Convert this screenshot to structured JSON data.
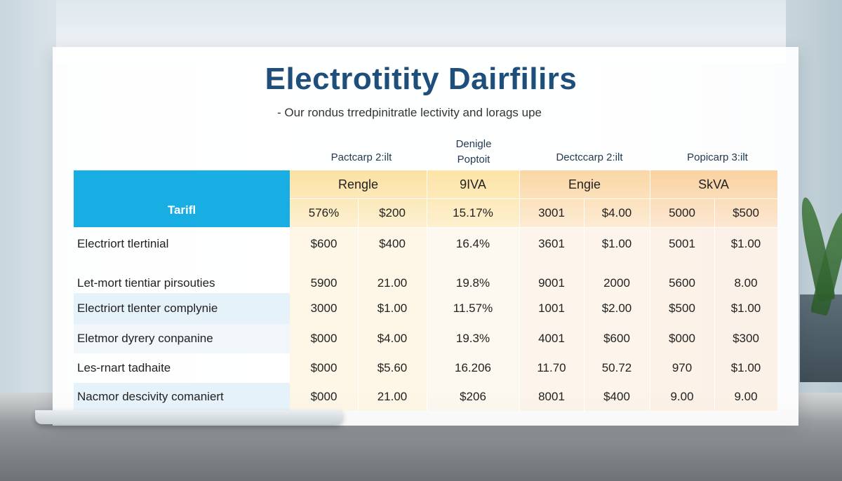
{
  "title": "Electrotitity Dairfilirs",
  "subtitle": "- Our rondus trredpinitratle lectivity and lorags upe",
  "column_headers": [
    {
      "text": "Pactcarp 2:ilt"
    },
    {
      "text": "Denigle\nPoptoit"
    },
    {
      "text": "Dectccarp 2:ilt"
    },
    {
      "text": "Popicarp 3:ilt"
    }
  ],
  "tarif_label": "Tarifl",
  "groups": [
    "Rengle",
    "9IVA",
    "Engie",
    "SkVA"
  ],
  "header_values": [
    "576%",
    "$200",
    "15.17%",
    "3001",
    "$4.00",
    "5000",
    "$500"
  ],
  "rows": [
    {
      "label": "Electriort tlertinial",
      "values": [
        "$600",
        "$400",
        "16.4%",
        "3601",
        "$1.00",
        "5001",
        "$1.00"
      ]
    },
    {
      "label": "Let-mort tientiar pirsouties",
      "values": [
        "5900",
        "21.00",
        "19.8%",
        "9001",
        "2000",
        "5600",
        "8.00"
      ]
    },
    {
      "label": "Electriort tlenter complynie",
      "values": [
        "3000",
        "$1.00",
        "11.57%",
        "1001",
        "$2.00",
        "$500",
        "$1.00"
      ]
    },
    {
      "label": "Eletmor dyrery conpanine",
      "values": [
        "$000",
        "$4.00",
        "19.3%",
        "4001",
        "$600",
        "$000",
        "$300"
      ]
    },
    {
      "label": "Les-rnart tadhaite",
      "values": [
        "$000",
        "$5.60",
        "16.206",
        "11.70",
        "50.72",
        "970",
        "$1.00"
      ]
    },
    {
      "label": "Nacmor descivity comaniert",
      "values": [
        "$000",
        "21.00",
        "$206",
        "8001",
        "$400",
        "9.00",
        "9.00"
      ]
    }
  ],
  "colors": {
    "title": "#1d4f7a",
    "tarif_bg": "#18aee4",
    "group_yellow": "#fbe3a8",
    "group_orange": "#fbd7a6",
    "row_blue": "#e8f4fb"
  }
}
